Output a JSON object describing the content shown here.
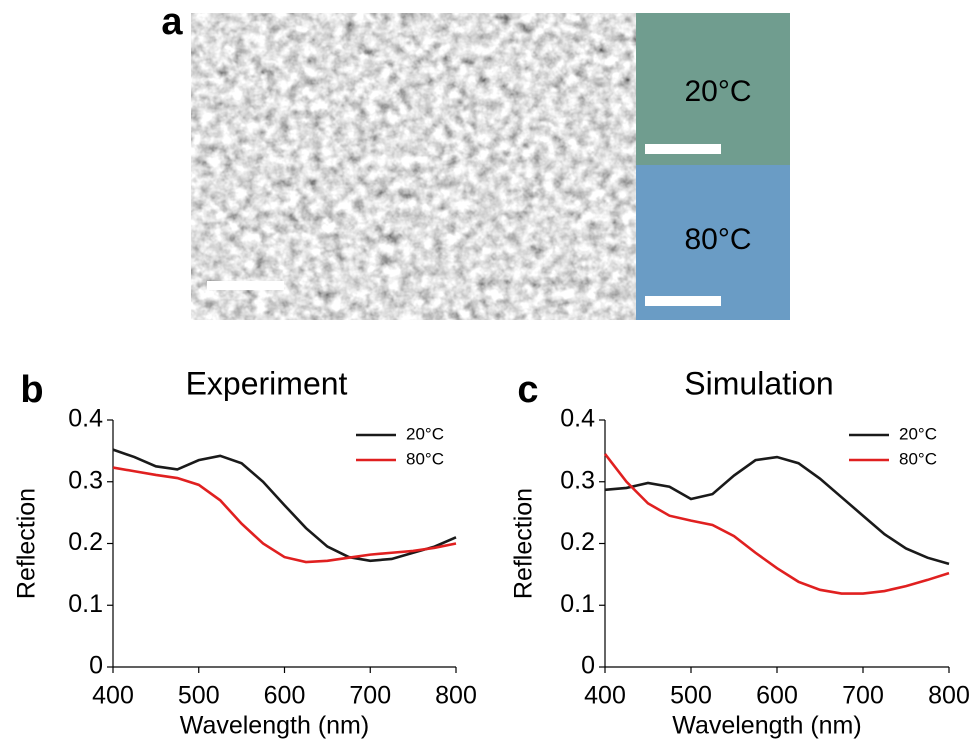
{
  "panel_a": {
    "label": "a",
    "top_label": "20°C",
    "bottom_label": "80°C"
  },
  "chart_data": [
    {
      "type": "line",
      "panel_label": "b",
      "title": "Experiment",
      "xlabel": "Wavelength (nm)",
      "ylabel": "Reflection",
      "x": [
        400,
        425,
        450,
        475,
        500,
        525,
        550,
        575,
        600,
        625,
        650,
        675,
        700,
        725,
        750,
        775,
        800
      ],
      "series": [
        {
          "name": "20°C",
          "color": "#1a1a1a",
          "values": [
            0.352,
            0.34,
            0.325,
            0.32,
            0.335,
            0.342,
            0.33,
            0.3,
            0.262,
            0.225,
            0.195,
            0.178,
            0.172,
            0.175,
            0.185,
            0.195,
            0.21
          ]
        },
        {
          "name": "80°C",
          "color": "#e02020",
          "values": [
            0.323,
            0.317,
            0.311,
            0.306,
            0.295,
            0.27,
            0.232,
            0.2,
            0.178,
            0.17,
            0.172,
            0.177,
            0.182,
            0.185,
            0.188,
            0.193,
            0.2
          ]
        }
      ],
      "xlim": [
        400,
        800
      ],
      "xticks": [
        400,
        500,
        600,
        700,
        800
      ],
      "ylim": [
        0,
        0.4
      ],
      "yticks": [
        0,
        0.1,
        0.2,
        0.3,
        0.4
      ],
      "legend": "upper right"
    },
    {
      "type": "line",
      "panel_label": "c",
      "title": "Simulation",
      "xlabel": "Wavelength (nm)",
      "ylabel": "Reflection",
      "x": [
        400,
        425,
        450,
        475,
        500,
        525,
        550,
        575,
        600,
        625,
        650,
        675,
        700,
        725,
        750,
        775,
        800
      ],
      "series": [
        {
          "name": "20°C",
          "color": "#1a1a1a",
          "values": [
            0.287,
            0.29,
            0.298,
            0.292,
            0.272,
            0.28,
            0.31,
            0.335,
            0.34,
            0.33,
            0.305,
            0.275,
            0.245,
            0.215,
            0.192,
            0.177,
            0.167
          ]
        },
        {
          "name": "80°C",
          "color": "#e02020",
          "values": [
            0.345,
            0.3,
            0.265,
            0.245,
            0.237,
            0.23,
            0.212,
            0.185,
            0.16,
            0.138,
            0.125,
            0.119,
            0.119,
            0.123,
            0.131,
            0.141,
            0.152
          ]
        }
      ],
      "xlim": [
        400,
        800
      ],
      "xticks": [
        400,
        500,
        600,
        700,
        800
      ],
      "ylim": [
        0,
        0.4
      ],
      "yticks": [
        0,
        0.1,
        0.2,
        0.3,
        0.4
      ],
      "legend": "upper right"
    }
  ]
}
